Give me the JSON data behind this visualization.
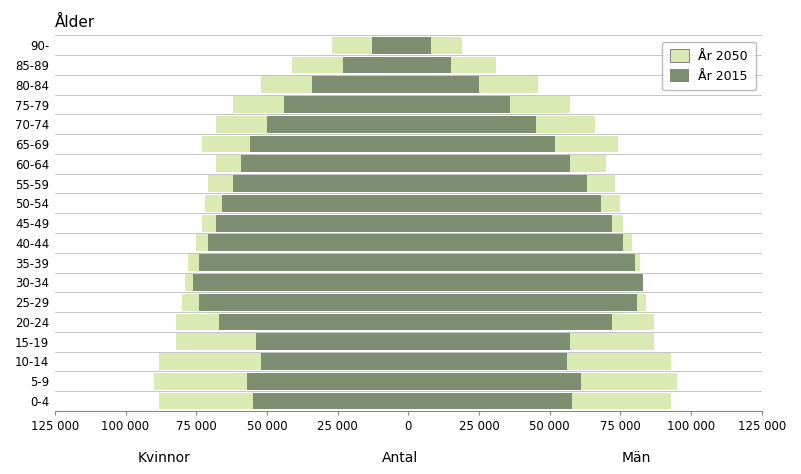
{
  "age_groups": [
    "0-4",
    "5-9",
    "10-14",
    "15-19",
    "20-24",
    "25-29",
    "30-34",
    "35-39",
    "40-44",
    "45-49",
    "50-54",
    "55-59",
    "60-64",
    "65-69",
    "70-74",
    "75-79",
    "80-84",
    "85-89",
    "90-"
  ],
  "women_2015": [
    55000,
    57000,
    52000,
    54000,
    67000,
    74000,
    76000,
    74000,
    71000,
    68000,
    66000,
    62000,
    59000,
    56000,
    50000,
    44000,
    34000,
    23000,
    13000
  ],
  "women_2050": [
    88000,
    90000,
    88000,
    82000,
    82000,
    80000,
    79000,
    78000,
    75000,
    73000,
    72000,
    71000,
    68000,
    73000,
    68000,
    62000,
    52000,
    41000,
    27000
  ],
  "men_2015": [
    58000,
    61000,
    56000,
    57000,
    72000,
    81000,
    83000,
    80000,
    76000,
    72000,
    68000,
    63000,
    57000,
    52000,
    45000,
    36000,
    25000,
    15000,
    8000
  ],
  "men_2050": [
    93000,
    95000,
    93000,
    87000,
    87000,
    84000,
    83000,
    82000,
    79000,
    76000,
    75000,
    73000,
    70000,
    74000,
    66000,
    57000,
    46000,
    31000,
    19000
  ],
  "color_2050": "#d9ebb3",
  "color_2015": "#7d8f70",
  "xlim": 125000,
  "xlabel_left": "Kvinnor",
  "xlabel_center": "Antal",
  "xlabel_right": "Män",
  "ylabel": "Ålder",
  "legend_2050": "År 2050",
  "legend_2015": "År 2015",
  "xtick_vals": [
    0,
    25000,
    50000,
    75000,
    100000,
    125000
  ],
  "xtick_labels_right": [
    "0",
    "25 000",
    "50 000",
    "75 000",
    "100 000",
    "125 000"
  ],
  "xtick_labels_left": [
    "125 000",
    "100 000",
    "75 000",
    "50 000",
    "25 000"
  ],
  "background_color": "#ffffff",
  "grid_color": "#bbbbbb"
}
